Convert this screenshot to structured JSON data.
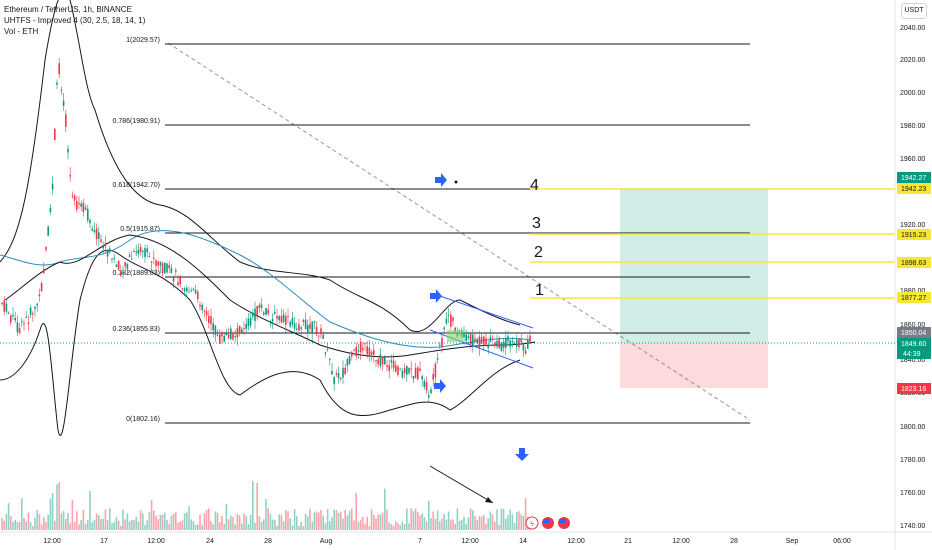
{
  "header": {
    "symbol": "Ethereum / TetherUS, 1h, BINANCE",
    "indicator1": "UHTFS - Improved 4 (30, 2.5, 18, 14, 1)",
    "indicator2": "Vol - ETH"
  },
  "price_axis": {
    "unit_button": "USDT",
    "ticks": [
      "2040.00",
      "2020.00",
      "2000.00",
      "1980.00",
      "1960.00",
      "1920.00",
      "1880.00",
      "1860.00",
      "1840.00",
      "1820.00",
      "1800.00",
      "1780.00",
      "1760.00",
      "1740.00"
    ]
  },
  "time_axis": {
    "ticks": [
      "12:00",
      "17",
      "12:00",
      "24",
      "28",
      "Aug",
      "7",
      "12:00",
      "14",
      "12:00",
      "21",
      "12:00",
      "28",
      "Sep",
      "06:00"
    ]
  },
  "fib_levels": [
    {
      "label": "1(2029.57)"
    },
    {
      "label": "0.786(1980.91)"
    },
    {
      "label": "0.618(1942.70)"
    },
    {
      "label": "0.5(1915.87)"
    },
    {
      "label": "0.382(1889.03)"
    },
    {
      "label": "0.236(1855.83)"
    },
    {
      "label": "0(1802.16)"
    }
  ],
  "target_numbers": [
    "4",
    "3",
    "2",
    "1"
  ],
  "price_tags": [
    {
      "text": "1942.27",
      "color": "#089981"
    },
    {
      "text": "1942.23",
      "color": "#f7e733"
    },
    {
      "text": "1915.23",
      "color": "#f7e733"
    },
    {
      "text": "1898.63",
      "color": "#f7e733"
    },
    {
      "text": "1877.27",
      "color": "#f7e733"
    },
    {
      "text": "1850.04",
      "color": "#787b86"
    },
    {
      "text": "1849.60",
      "color": "#089981"
    },
    {
      "text": "44:39",
      "color": "#089981"
    },
    {
      "text": "1823.16",
      "color": "#f23645"
    }
  ],
  "colors": {
    "accent_up": "#089981",
    "accent_down": "#f23645",
    "target_line": "#f7e733",
    "arrow_blue": "#2962ff"
  }
}
